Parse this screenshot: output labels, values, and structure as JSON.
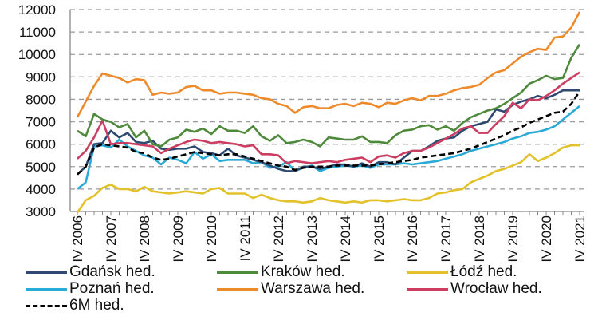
{
  "chart_data": {
    "type": "line",
    "title": "",
    "xlabel": "",
    "ylabel": "",
    "ylim": [
      3000,
      12000
    ],
    "yticks": [
      "3000",
      "4000",
      "5000",
      "6000",
      "7000",
      "8000",
      "9000",
      "10000",
      "11000",
      "12000"
    ],
    "xtick_labels": [
      "IV 2006",
      "IV 2007",
      "IV 2008",
      "IV 2009",
      "IV 2010",
      "IV 2011",
      "IV 2012",
      "IV 2013",
      "IV 2014",
      "IV 2015",
      "IV 2016",
      "IV 2017",
      "IV 2018",
      "IV 2019",
      "IV 2020",
      "IV 2021"
    ],
    "x_range": [
      "IV 2006",
      "IV 2021"
    ],
    "x_frequency": "quarterly",
    "grid": "horizontal dashed",
    "legend_position": "bottom",
    "series": [
      {
        "name": "Gdańsk hed.",
        "color": "#2e4a70",
        "style": "solid",
        "values": [
          4650,
          5000,
          6000,
          6050,
          6600,
          6300,
          6500,
          6100,
          6050,
          6150,
          5800,
          5750,
          5800,
          5800,
          5900,
          5650,
          5600,
          5500,
          5800,
          5500,
          5400,
          5300,
          5200,
          5050,
          4900,
          4800,
          4800,
          5000,
          5000,
          4900,
          5000,
          5100,
          5100,
          5000,
          5150,
          5000,
          5200,
          5200,
          5100,
          5400,
          5700,
          5700,
          5900,
          6150,
          6250,
          6300,
          6600,
          6800,
          6900,
          7000,
          7550,
          7450,
          7750,
          7900,
          8000,
          8150,
          8050,
          8200,
          8400,
          8400,
          8400
        ]
      },
      {
        "name": "Kraków hed.",
        "color": "#4f8a3c",
        "style": "solid",
        "values": [
          6600,
          6350,
          7350,
          7100,
          7000,
          6750,
          6900,
          6300,
          6600,
          6000,
          5900,
          6200,
          6300,
          6650,
          6550,
          6700,
          6450,
          6800,
          6600,
          6600,
          6500,
          6800,
          6350,
          6150,
          6400,
          6050,
          6100,
          6200,
          6100,
          5900,
          6300,
          6250,
          6200,
          6200,
          6350,
          6100,
          6100,
          6050,
          6400,
          6600,
          6650,
          6800,
          6850,
          6650,
          6800,
          6600,
          6950,
          7200,
          7350,
          7500,
          7600,
          7800,
          8050,
          8300,
          8700,
          8850,
          9050,
          8900,
          8950,
          9850,
          10450
        ]
      },
      {
        "name": "Łódź hed.",
        "color": "#e2c12a",
        "style": "solid",
        "values": [
          2950,
          3500,
          3700,
          4050,
          4200,
          4000,
          4000,
          3900,
          4100,
          3900,
          3850,
          3800,
          3850,
          3900,
          3850,
          3800,
          4000,
          4050,
          3800,
          3800,
          3800,
          3600,
          3750,
          3600,
          3500,
          3450,
          3450,
          3400,
          3450,
          3600,
          3500,
          3450,
          3400,
          3450,
          3400,
          3500,
          3500,
          3450,
          3500,
          3550,
          3500,
          3500,
          3600,
          3800,
          3850,
          3950,
          4000,
          4300,
          4450,
          4600,
          4800,
          4900,
          5050,
          5200,
          5550,
          5250,
          5400,
          5600,
          5850,
          5950,
          5950
        ]
      },
      {
        "name": "Poznań hed.",
        "color": "#2aaad6",
        "style": "solid",
        "values": [
          4000,
          4300,
          5900,
          5950,
          5850,
          6200,
          5900,
          5700,
          5500,
          5400,
          5100,
          5400,
          5300,
          5150,
          5650,
          5350,
          5550,
          5250,
          5300,
          5300,
          5300,
          5150,
          5200,
          4950,
          5000,
          5200,
          4800,
          4950,
          5050,
          4800,
          4950,
          5000,
          5050,
          5000,
          5050,
          4950,
          5100,
          5100,
          5100,
          5150,
          5100,
          5150,
          5200,
          5250,
          5350,
          5450,
          5550,
          5700,
          5800,
          5900,
          6000,
          6100,
          6250,
          6350,
          6500,
          6550,
          6650,
          6800,
          7100,
          7400,
          7700
        ]
      },
      {
        "name": "Warszawa hed.",
        "color": "#ee8a2a",
        "style": "solid",
        "values": [
          7200,
          7900,
          8600,
          9150,
          9050,
          8950,
          8750,
          8900,
          8850,
          8200,
          8300,
          8250,
          8300,
          8550,
          8600,
          8400,
          8400,
          8250,
          8300,
          8300,
          8250,
          8200,
          8050,
          8000,
          7800,
          7700,
          7400,
          7650,
          7700,
          7600,
          7600,
          7750,
          7800,
          7700,
          7850,
          7800,
          7650,
          7850,
          7800,
          7950,
          8050,
          7950,
          8150,
          8150,
          8250,
          8400,
          8500,
          8550,
          8650,
          8950,
          9200,
          9300,
          9600,
          9900,
          10100,
          10250,
          10200,
          10750,
          10800,
          11200,
          11900
        ]
      },
      {
        "name": "Wrocław hed.",
        "color": "#cc3d62",
        "style": "solid",
        "values": [
          5350,
          5700,
          6300,
          7050,
          6000,
          6050,
          6050,
          6000,
          5950,
          5900,
          5600,
          5800,
          5950,
          6100,
          6200,
          6150,
          6050,
          6100,
          6050,
          6000,
          5900,
          5950,
          5550,
          5550,
          5500,
          5150,
          5250,
          5200,
          5150,
          5200,
          5250,
          5200,
          5300,
          5350,
          5400,
          5200,
          5450,
          5500,
          5400,
          5600,
          5700,
          5700,
          5850,
          6050,
          6250,
          6450,
          6700,
          6800,
          6500,
          6500,
          6900,
          7250,
          7850,
          7600,
          8000,
          7950,
          8150,
          8400,
          8700,
          8950,
          9200
        ]
      },
      {
        "name": "6M hed.",
        "color": "#000000",
        "style": "dashed",
        "values": [
          4650,
          5000,
          5850,
          6000,
          5950,
          5900,
          5850,
          5650,
          5600,
          5400,
          5300,
          5350,
          5450,
          5550,
          5650,
          5600,
          5550,
          5500,
          5550,
          5550,
          5450,
          5350,
          5250,
          5150,
          5050,
          5000,
          4850,
          4950,
          5000,
          5000,
          5000,
          5050,
          5050,
          5050,
          5050,
          5050,
          5100,
          5150,
          5200,
          5250,
          5300,
          5400,
          5450,
          5500,
          5550,
          5600,
          5700,
          5800,
          5950,
          6100,
          6250,
          6400,
          6600,
          6750,
          6950,
          7100,
          7250,
          7400,
          7450,
          7800,
          8350
        ]
      }
    ]
  }
}
